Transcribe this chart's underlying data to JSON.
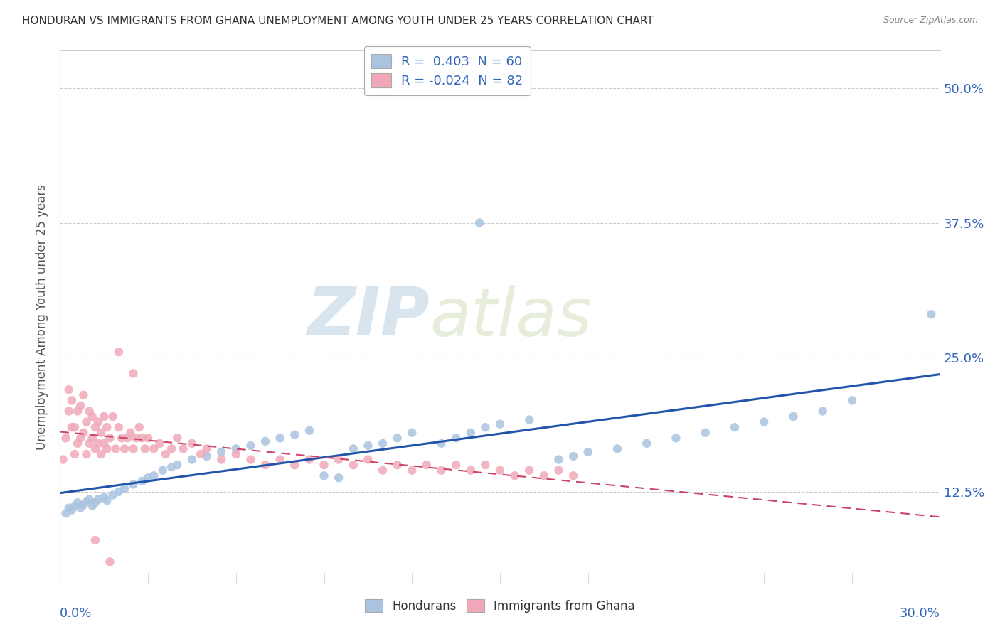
{
  "title": "HONDURAN VS IMMIGRANTS FROM GHANA UNEMPLOYMENT AMONG YOUTH UNDER 25 YEARS CORRELATION CHART",
  "source": "Source: ZipAtlas.com",
  "ylabel": "Unemployment Among Youth under 25 years",
  "ytick_labels": [
    "12.5%",
    "25.0%",
    "37.5%",
    "50.0%"
  ],
  "ytick_values": [
    0.125,
    0.25,
    0.375,
    0.5
  ],
  "xmin": 0.0,
  "xmax": 0.3,
  "ymin": 0.04,
  "ymax": 0.535,
  "blue_color": "#aac4e0",
  "pink_color": "#f0a8b8",
  "blue_line_color": "#2255aa",
  "pink_line_color": "#cc4466",
  "blue_R": 0.403,
  "blue_N": 60,
  "pink_R": -0.024,
  "pink_N": 82,
  "watermark_zip": "ZIP",
  "watermark_atlas": "atlas",
  "blue_scatter_x": [
    0.002,
    0.003,
    0.004,
    0.005,
    0.006,
    0.007,
    0.008,
    0.009,
    0.01,
    0.011,
    0.012,
    0.013,
    0.015,
    0.016,
    0.018,
    0.02,
    0.022,
    0.025,
    0.028,
    0.03,
    0.032,
    0.035,
    0.038,
    0.04,
    0.045,
    0.05,
    0.055,
    0.06,
    0.065,
    0.07,
    0.075,
    0.08,
    0.085,
    0.09,
    0.095,
    0.1,
    0.105,
    0.11,
    0.115,
    0.12,
    0.13,
    0.135,
    0.14,
    0.145,
    0.15,
    0.16,
    0.17,
    0.175,
    0.18,
    0.19,
    0.2,
    0.21,
    0.22,
    0.23,
    0.24,
    0.25,
    0.26,
    0.27,
    0.143,
    0.297
  ],
  "blue_scatter_y": [
    0.105,
    0.11,
    0.108,
    0.112,
    0.115,
    0.11,
    0.113,
    0.116,
    0.118,
    0.112,
    0.115,
    0.118,
    0.12,
    0.117,
    0.122,
    0.125,
    0.128,
    0.132,
    0.135,
    0.138,
    0.14,
    0.145,
    0.148,
    0.15,
    0.155,
    0.158,
    0.162,
    0.165,
    0.168,
    0.172,
    0.175,
    0.178,
    0.182,
    0.14,
    0.138,
    0.165,
    0.168,
    0.17,
    0.175,
    0.18,
    0.17,
    0.175,
    0.18,
    0.185,
    0.188,
    0.192,
    0.155,
    0.158,
    0.162,
    0.165,
    0.17,
    0.175,
    0.18,
    0.185,
    0.19,
    0.195,
    0.2,
    0.21,
    0.375,
    0.29
  ],
  "pink_scatter_x": [
    0.001,
    0.002,
    0.003,
    0.003,
    0.004,
    0.004,
    0.005,
    0.005,
    0.006,
    0.006,
    0.007,
    0.007,
    0.008,
    0.008,
    0.009,
    0.009,
    0.01,
    0.01,
    0.011,
    0.011,
    0.012,
    0.012,
    0.013,
    0.013,
    0.014,
    0.014,
    0.015,
    0.015,
    0.016,
    0.016,
    0.017,
    0.018,
    0.019,
    0.02,
    0.021,
    0.022,
    0.023,
    0.024,
    0.025,
    0.026,
    0.027,
    0.028,
    0.029,
    0.03,
    0.032,
    0.034,
    0.036,
    0.038,
    0.04,
    0.042,
    0.045,
    0.048,
    0.05,
    0.055,
    0.06,
    0.065,
    0.07,
    0.075,
    0.08,
    0.085,
    0.09,
    0.095,
    0.1,
    0.105,
    0.11,
    0.115,
    0.12,
    0.125,
    0.13,
    0.135,
    0.14,
    0.145,
    0.15,
    0.155,
    0.16,
    0.165,
    0.17,
    0.175,
    0.02,
    0.025,
    0.012,
    0.017
  ],
  "pink_scatter_y": [
    0.155,
    0.175,
    0.2,
    0.22,
    0.185,
    0.21,
    0.16,
    0.185,
    0.17,
    0.2,
    0.175,
    0.205,
    0.18,
    0.215,
    0.16,
    0.19,
    0.17,
    0.2,
    0.175,
    0.195,
    0.165,
    0.185,
    0.17,
    0.19,
    0.16,
    0.18,
    0.17,
    0.195,
    0.165,
    0.185,
    0.175,
    0.195,
    0.165,
    0.185,
    0.175,
    0.165,
    0.175,
    0.18,
    0.165,
    0.175,
    0.185,
    0.175,
    0.165,
    0.175,
    0.165,
    0.17,
    0.16,
    0.165,
    0.175,
    0.165,
    0.17,
    0.16,
    0.165,
    0.155,
    0.16,
    0.155,
    0.15,
    0.155,
    0.15,
    0.155,
    0.15,
    0.155,
    0.15,
    0.155,
    0.145,
    0.15,
    0.145,
    0.15,
    0.145,
    0.15,
    0.145,
    0.15,
    0.145,
    0.14,
    0.145,
    0.14,
    0.145,
    0.14,
    0.255,
    0.235,
    0.08,
    0.06
  ]
}
